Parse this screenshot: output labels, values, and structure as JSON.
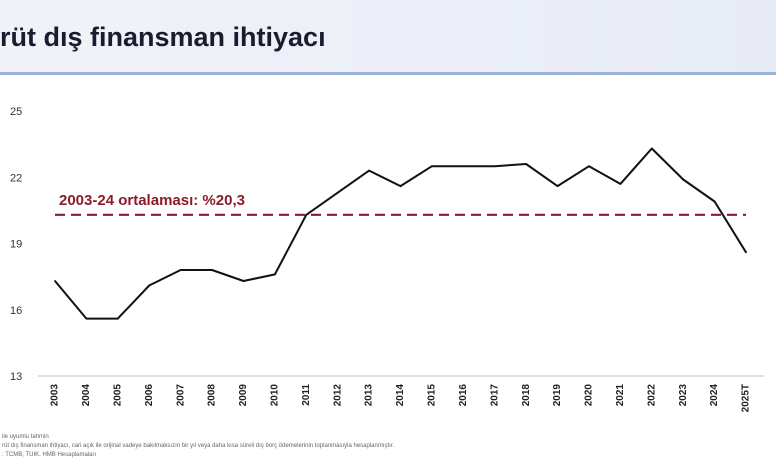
{
  "header": {
    "title": "rüt dış finansman ihtiyacı"
  },
  "footnotes": [
    "ile uyumlu tahmin",
    "rüt dış finansman ihtiyacı, cari açık ile orijinal vadeye bakılmaksızın bir yıl veya daha kısa süreli dış borç ödemelerinin toplanmasıyla hesaplanmıştır.",
    ": TCMB, TÜİK, HMB Hesaplamaları"
  ],
  "chart_data": {
    "type": "line",
    "categories": [
      "2003",
      "2004",
      "2005",
      "2006",
      "2007",
      "2008",
      "2009",
      "2010",
      "2011",
      "2012",
      "2013",
      "2014",
      "2015",
      "2016",
      "2017",
      "2018",
      "2019",
      "2020",
      "2021",
      "2022",
      "2023",
      "2024",
      "2025T"
    ],
    "series": [
      {
        "values": [
          17.3,
          15.6,
          15.6,
          17.1,
          17.8,
          17.8,
          17.3,
          17.6,
          20.3,
          21.3,
          22.3,
          21.6,
          22.5,
          22.5,
          22.5,
          22.6,
          21.6,
          22.5,
          21.7,
          23.3,
          21.9,
          20.9,
          18.6
        ],
        "color": "#111111"
      }
    ],
    "reference_line": {
      "value": 20.3,
      "label": "2003-24 ortalaması: %20,3",
      "style": "dashed",
      "color": "#8a1c2c"
    },
    "yticks": [
      13,
      16,
      19,
      22,
      25
    ],
    "ylim": [
      13,
      25
    ],
    "grid": false,
    "legend": "none"
  }
}
